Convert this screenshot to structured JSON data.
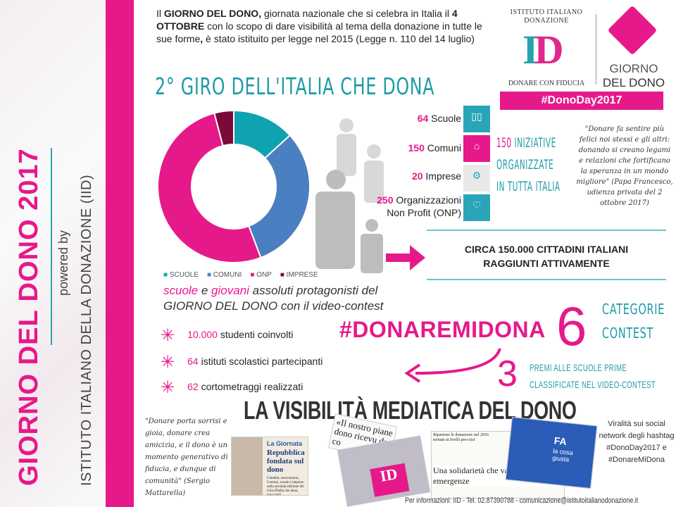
{
  "side": {
    "title": "GIORNO DEL DONO 2017",
    "powered": "powered by",
    "institute": "ISTITUTO ITALIANO DELLA DONAZIONE (IID)"
  },
  "intro": {
    "p1": "Il ",
    "b1": "GIORNO DEL DONO,",
    "p2": " giornata nazionale che si celebra in Italia il ",
    "b2": "4 OTTOBRE",
    "p3": " con lo scopo di dare visibilità al tema della donazione in tutte le sue forme",
    "b3": ",",
    "p4": " è stato istituito per legge nel 2015 (Legge n. 110 del 14 luglio)"
  },
  "headline": "2° GIRO DELL'ITALIA CHE DONA",
  "logo": {
    "ring": "ISTITUTO ITALIANO DONAZIONE",
    "letters": "ID",
    "tagline": "DONARE CON FIDUCIA",
    "gdd1": "GIORNO",
    "gdd2": "DEL DONO",
    "hashtag": "#DonoDay2017"
  },
  "stats": [
    {
      "n": "64",
      "label": " Scuole",
      "tile": "SCUOLE",
      "color": "#2aa5b8",
      "icon": "book-icon"
    },
    {
      "n": "150",
      "label": " Comuni",
      "tile": "COMUNI",
      "color": "#e6198a",
      "icon": "building-icon"
    },
    {
      "n": "20",
      "label": " Imprese",
      "tile": "IMPRESE",
      "color": "#e9e9e9",
      "icon": "gears-icon"
    },
    {
      "n": "250",
      "label": " Organizzazioni",
      "label2": "Non Profit (ONP)",
      "tile": "NON PROFIT",
      "color": "#2aa5b8",
      "icon": "heart-icon"
    }
  ],
  "iniziative": {
    "n": "150",
    "l1": " INIZIATIVE",
    "l2": "ORGANIZZATE",
    "l3": "IN TUTTA ITALIA"
  },
  "papa_quote": "\"Donare fa sentire più felici noi stessi e gli altri: donando si creano legami e relazioni che fortificano la speranza in un mondo migliore\" (Papa Francesco, udienza privata del 2 ottobre 2017)",
  "circa": {
    "l1": "CIRCA 150.000 CITTADINI ITALIANI",
    "l2": "RAGGIUNTI ATTIVAMENTE"
  },
  "chart_data": {
    "type": "pie",
    "donut": true,
    "categories": [
      "SCUOLE",
      "COMUNI",
      "ONP",
      "IMPRESE"
    ],
    "values": [
      64,
      150,
      250,
      20
    ],
    "colors": [
      "#0fa3b1",
      "#4a7fc1",
      "#e6198a",
      "#7a0a3a"
    ],
    "legend": "bottom"
  },
  "protag": {
    "a": "scuole",
    "b": " e ",
    "c": "giovani",
    "d": " assoluti protagonisti del",
    "e": "GIORNO DEL DONO con il video-contest"
  },
  "bullets": [
    {
      "n": "10.000",
      "t": " studenti coinvolti"
    },
    {
      "n": "64",
      "t": " istituti scolastici partecipanti"
    },
    {
      "n": "62",
      "t": " cortometraggi realizzati"
    }
  ],
  "contest": {
    "hashtag": "#DONAREMIDONA",
    "six": "6",
    "cat1": "CATEGORIE",
    "cat2": "CONTEST",
    "three": "3",
    "premi1": "PREMI ALLE SCUOLE PRIME",
    "premi2": "CLASSIFICATE NEL VIDEO-CONTEST"
  },
  "media": {
    "title": "LA VISIBILITÀ MEDIATICA DEL DONO",
    "mattarella": "\"Donare porta sorrisi e gioia, donare crea amicizia, e il dono è un momento generativo di fiducia, e dunque di comunità\" (Sergio Mattarella)",
    "clip1_kicker": "La Giornata",
    "clip1_head": "Repubblica fondata sul dono",
    "clip1_body": "Cittadini, associazioni, Comuni, scuole e imprese nella seconda edizione del Giro d'Italia che dona, mercoledì.",
    "clip2_head": "«Il nostro piane dono ricevu da co",
    "clip3_top": "Ripartono le donazioni: nel 2016 tornate ai livelli pre-crisi",
    "clip3_head": "Una solidarietà che va oltre le emergenze",
    "clip4_a": "FA",
    "clip4_b": "la cosa giusta",
    "viral": "Viralità sui social network degli hashtag #DonoDay2017 e #DonareMiDona"
  },
  "footer": "Per informazioni: IID - Tel. 02.87390788 - comunicazione@istitutoitalianodonazione.it"
}
